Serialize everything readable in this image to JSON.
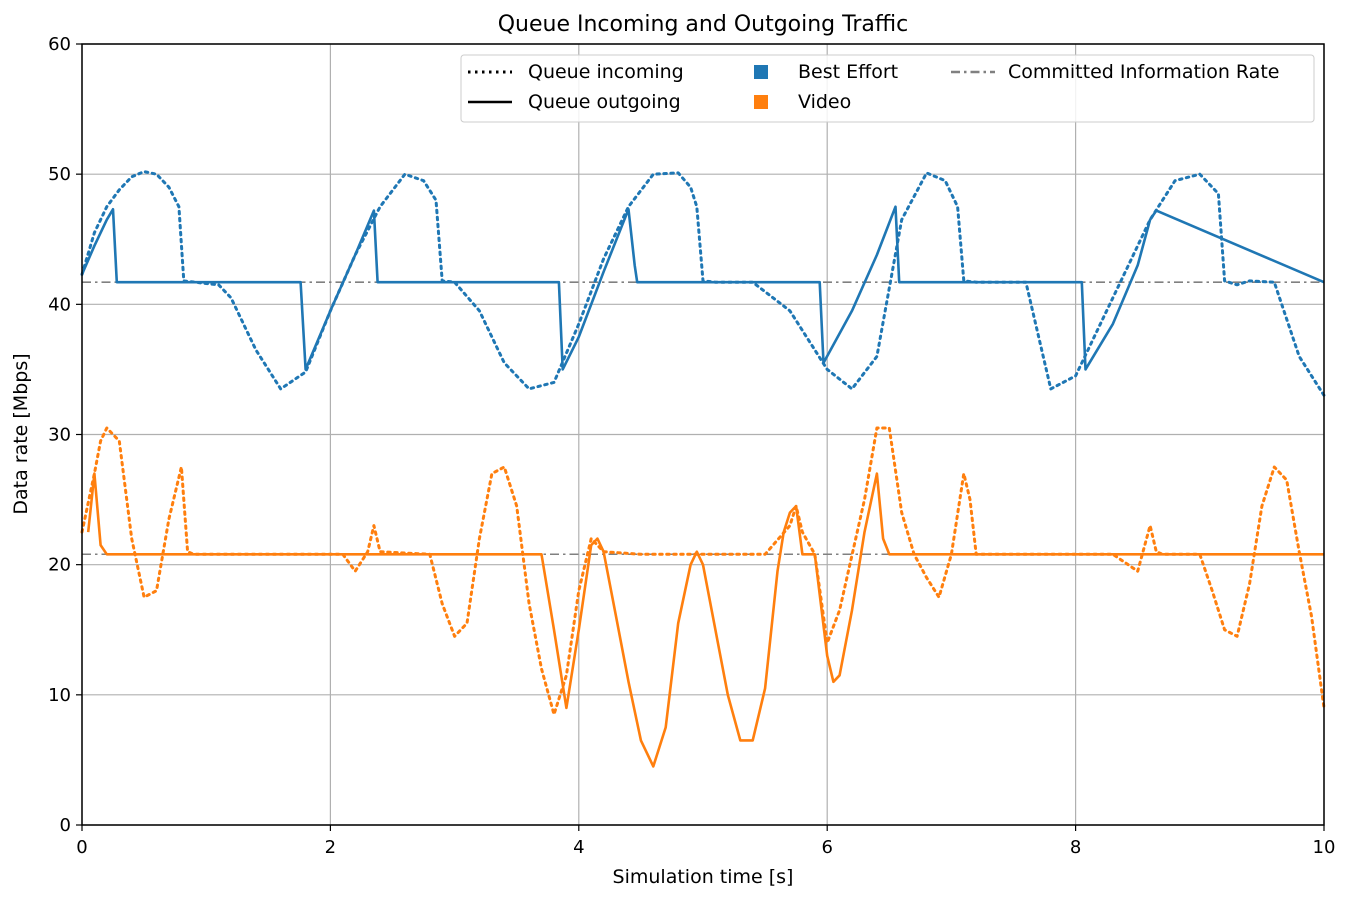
{
  "chart_data": {
    "type": "line",
    "title": "Queue Incoming and Outgoing Traffic",
    "xlabel": "Simulation time [s]",
    "ylabel": "Data rate [Mbps]",
    "xlim": [
      0,
      10
    ],
    "ylim": [
      0,
      60
    ],
    "x_ticks": [
      0,
      2,
      4,
      6,
      8,
      10
    ],
    "y_ticks": [
      0,
      10,
      20,
      30,
      40,
      50,
      60
    ],
    "grid": true,
    "legend_position": "top-right",
    "legend": {
      "line_styles": [
        {
          "label": "Queue incoming",
          "style": "dotted"
        },
        {
          "label": "Queue outgoing",
          "style": "solid"
        }
      ],
      "classes": [
        {
          "label": "Best Effort",
          "color": "#1f77b4"
        },
        {
          "label": "Video",
          "color": "#ff7f0e"
        }
      ],
      "references": [
        {
          "label": "Committed Information Rate",
          "style": "dashdot",
          "color": "#808080"
        }
      ]
    },
    "reference_lines": [
      {
        "y": 41.7,
        "color": "#808080",
        "style": "dashdot"
      },
      {
        "y": 20.8,
        "color": "#808080",
        "style": "dashdot"
      }
    ],
    "series": [
      {
        "class": "Best Effort",
        "direction": "incoming",
        "style": "dotted",
        "color": "#1f77b4",
        "x": [
          0.0,
          0.1,
          0.2,
          0.3,
          0.4,
          0.5,
          0.6,
          0.7,
          0.78,
          0.82,
          1.0,
          1.1,
          1.2,
          1.4,
          1.6,
          1.8,
          2.0,
          2.2,
          2.4,
          2.6,
          2.75,
          2.85,
          2.9,
          3.0,
          3.2,
          3.4,
          3.6,
          3.8,
          4.0,
          4.2,
          4.4,
          4.6,
          4.8,
          4.9,
          4.95,
          5.0,
          5.1,
          5.2,
          5.4,
          5.7,
          6.0,
          6.2,
          6.4,
          6.6,
          6.8,
          6.95,
          7.05,
          7.1,
          7.2,
          7.4,
          7.6,
          7.8,
          8.0,
          8.2,
          8.4,
          8.6,
          8.8,
          9.0,
          9.15,
          9.2,
          9.3,
          9.4,
          9.6,
          9.8,
          10.0
        ],
        "y": [
          42.3,
          45.5,
          47.5,
          48.8,
          49.8,
          50.2,
          50.0,
          49.0,
          47.5,
          41.8,
          41.6,
          41.5,
          40.5,
          36.5,
          33.5,
          34.8,
          39.5,
          43.8,
          47.5,
          50.0,
          49.5,
          48.0,
          41.8,
          41.7,
          39.5,
          35.5,
          33.5,
          34.0,
          38.5,
          43.5,
          47.5,
          50.0,
          50.1,
          49.0,
          47.5,
          41.8,
          41.7,
          41.7,
          41.7,
          39.5,
          35.0,
          33.5,
          36.0,
          46.5,
          50.1,
          49.5,
          47.5,
          41.8,
          41.7,
          41.7,
          41.7,
          33.5,
          34.5,
          38.5,
          42.5,
          46.5,
          49.5,
          50.0,
          48.5,
          41.8,
          41.5,
          41.8,
          41.7,
          36.0,
          33.0
        ]
      },
      {
        "class": "Best Effort",
        "direction": "outgoing",
        "style": "solid",
        "color": "#1f77b4",
        "x": [
          0.0,
          0.1,
          0.2,
          0.25,
          0.28,
          1.76,
          1.8,
          2.0,
          2.2,
          2.35,
          2.38,
          3.84,
          3.87,
          4.0,
          4.2,
          4.4,
          4.45,
          4.47,
          5.94,
          5.97,
          6.2,
          6.4,
          6.55,
          6.58,
          8.05,
          8.08,
          8.3,
          8.5,
          8.6,
          8.65,
          10.0
        ],
        "y": [
          42.3,
          44.5,
          46.5,
          47.3,
          41.7,
          41.7,
          35.0,
          39.5,
          43.8,
          47.2,
          41.7,
          41.7,
          35.0,
          37.5,
          42.5,
          47.3,
          43.0,
          41.7,
          41.7,
          35.5,
          39.5,
          43.8,
          47.5,
          41.7,
          41.7,
          35.0,
          38.5,
          43.0,
          46.5,
          47.2,
          41.7
        ]
      },
      {
        "class": "Video",
        "direction": "incoming",
        "style": "dotted",
        "color": "#ff7f0e",
        "x": [
          0.0,
          0.1,
          0.15,
          0.2,
          0.3,
          0.4,
          0.5,
          0.6,
          0.7,
          0.8,
          0.85,
          0.9,
          1.0,
          1.1,
          1.5,
          2.0,
          2.1,
          2.2,
          2.3,
          2.35,
          2.4,
          2.8,
          2.9,
          3.0,
          3.1,
          3.2,
          3.3,
          3.4,
          3.5,
          3.6,
          3.7,
          3.8,
          3.9,
          4.0,
          4.1,
          4.2,
          4.5,
          5.0,
          5.5,
          5.7,
          5.75,
          5.8,
          5.9,
          6.0,
          6.1,
          6.3,
          6.4,
          6.5,
          6.6,
          6.7,
          6.8,
          6.9,
          7.0,
          7.1,
          7.15,
          7.2,
          7.3,
          7.6,
          8.0,
          8.3,
          8.5,
          8.6,
          8.65,
          8.7,
          8.8,
          9.0,
          9.1,
          9.2,
          9.3,
          9.4,
          9.5,
          9.6,
          9.7,
          9.8,
          9.9,
          10.0
        ],
        "y": [
          22.5,
          27.0,
          29.5,
          30.5,
          29.5,
          22.0,
          17.5,
          18.0,
          23.5,
          27.5,
          21.0,
          20.8,
          20.8,
          20.8,
          20.8,
          20.8,
          20.8,
          19.5,
          21.0,
          23.0,
          21.0,
          20.8,
          17.0,
          14.5,
          15.5,
          22.0,
          27.0,
          27.5,
          24.5,
          17.0,
          12.0,
          8.5,
          11.5,
          18.0,
          22.0,
          21.0,
          20.8,
          20.8,
          20.8,
          23.0,
          24.5,
          22.5,
          20.8,
          14.0,
          16.5,
          25.0,
          30.5,
          30.5,
          24.0,
          20.8,
          19.0,
          17.5,
          20.8,
          27.0,
          25.0,
          20.8,
          20.8,
          20.8,
          20.8,
          20.8,
          19.5,
          23.0,
          21.0,
          20.8,
          20.8,
          20.8,
          18.0,
          15.0,
          14.5,
          18.5,
          24.5,
          27.5,
          26.5,
          21.0,
          16.0,
          9.0
        ]
      },
      {
        "class": "Video",
        "direction": "outgoing",
        "style": "solid",
        "color": "#ff7f0e",
        "x": [
          0.05,
          0.1,
          0.15,
          0.2,
          3.7,
          3.8,
          3.9,
          4.0,
          4.1,
          4.15,
          4.2,
          4.3,
          4.4,
          4.5,
          4.6,
          4.7,
          4.8,
          4.9,
          4.95,
          5.0,
          5.1,
          5.2,
          5.3,
          5.4,
          5.5,
          5.6,
          5.65,
          5.7,
          5.75,
          5.8,
          5.9,
          6.0,
          6.05,
          6.1,
          6.2,
          6.3,
          6.4,
          6.45,
          6.5,
          10.0
        ],
        "y": [
          22.5,
          27.0,
          21.5,
          20.8,
          20.8,
          15.0,
          9.0,
          15.0,
          21.5,
          22.0,
          21.0,
          16.0,
          11.0,
          6.5,
          4.5,
          7.5,
          15.5,
          20.0,
          21.0,
          20.0,
          15.0,
          10.0,
          6.5,
          6.5,
          10.5,
          19.5,
          22.5,
          24.0,
          24.5,
          20.8,
          20.8,
          13.0,
          11.0,
          11.5,
          16.5,
          22.5,
          27.0,
          22.0,
          20.8,
          20.8
        ]
      }
    ]
  }
}
